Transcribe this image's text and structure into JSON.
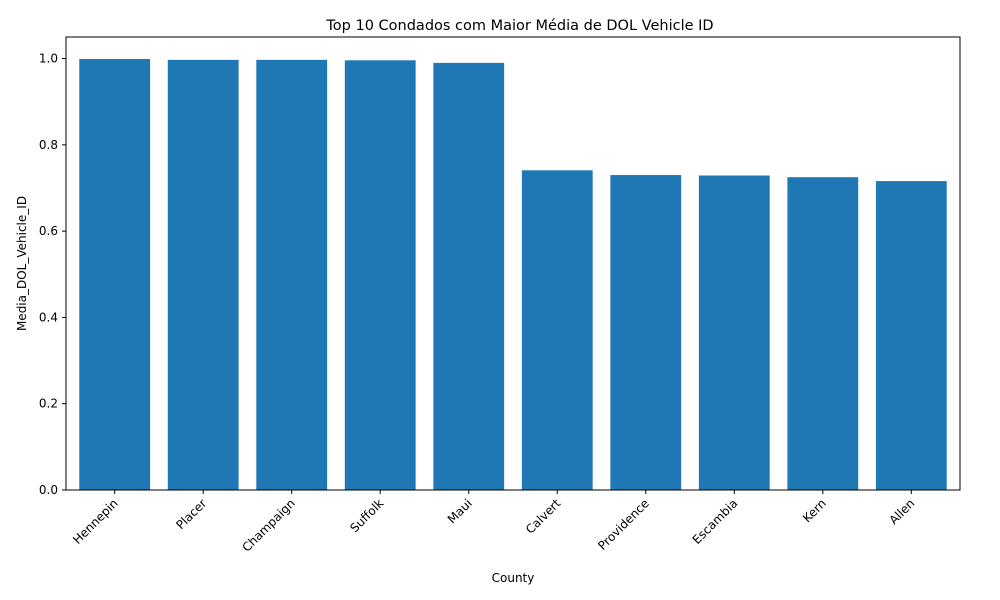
{
  "chart_data": {
    "type": "bar",
    "title": "Top 10 Condados com Maior Média de DOL Vehicle ID",
    "xlabel": "County",
    "ylabel": "Media_DOL_Vehicle_ID",
    "categories": [
      "Hennepin",
      "Placer",
      "Champaign",
      "Suffolk",
      "Maui",
      "Calvert",
      "Providence",
      "Escambia",
      "Kern",
      "Allen"
    ],
    "values": [
      0.999,
      0.997,
      0.997,
      0.996,
      0.99,
      0.741,
      0.73,
      0.729,
      0.725,
      0.716
    ],
    "ylim": [
      0,
      1.05
    ],
    "yticks": [
      "0.0",
      "0.2",
      "0.4",
      "0.6",
      "0.8",
      "1.0"
    ],
    "bar_color": "#1f77b4",
    "grid": false,
    "legend": "none"
  }
}
